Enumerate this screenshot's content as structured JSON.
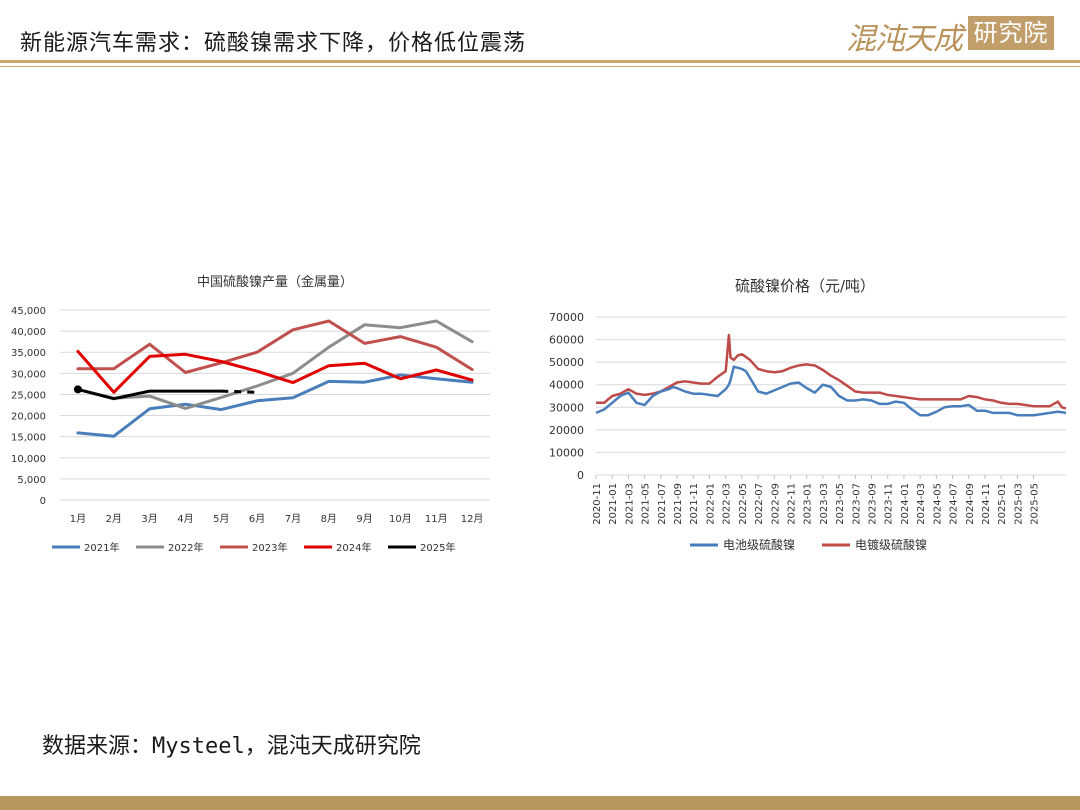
{
  "header": {
    "title": "新能源汽车需求：硫酸镍需求下降，价格低位震荡",
    "logo_left": "混沌天成",
    "logo_right": "研究院"
  },
  "footer": {
    "source": "数据来源：Mysteel，混沌天成研究院"
  },
  "colors": {
    "gold": "#c9a86c",
    "s2021": "#4a7ebb",
    "s2022": "#8c8c8c",
    "s2023": "#c0504d",
    "s2024": "#e00000",
    "s2025": "#000000",
    "battery": "#4a7ebb",
    "plating": "#be4b48"
  },
  "chart_data": [
    {
      "type": "line",
      "title": "中国硫酸镍产量（金属量）",
      "xlabel": "",
      "ylabel": "",
      "categories": [
        "1月",
        "2月",
        "3月",
        "4月",
        "5月",
        "6月",
        "7月",
        "8月",
        "9月",
        "10月",
        "11月",
        "12月"
      ],
      "ylim": [
        0,
        45000
      ],
      "yticks": [
        "0",
        "5,000",
        "10,000",
        "15,000",
        "20,000",
        "25,000",
        "30,000",
        "35,000",
        "40,000",
        "45,000"
      ],
      "grid": true,
      "legend": "bottom",
      "series": [
        {
          "name": "2021年",
          "color": "#4a7ebb",
          "values": [
            15900,
            15100,
            21600,
            22700,
            21400,
            23500,
            24200,
            28100,
            27900,
            29600,
            28700,
            27900
          ]
        },
        {
          "name": "2022年",
          "color": "#8c8c8c",
          "values": [
            26200,
            24100,
            24600,
            21700,
            24300,
            27000,
            30000,
            36200,
            41500,
            40800,
            42400,
            37500
          ]
        },
        {
          "name": "2023年",
          "color": "#c0504d",
          "values": [
            31100,
            31100,
            36900,
            30200,
            32500,
            35000,
            40300,
            42400,
            37100,
            38700,
            36200,
            30900
          ]
        },
        {
          "name": "2024年",
          "color": "#e00000",
          "values": [
            35200,
            25500,
            34000,
            34500,
            32800,
            30500,
            27800,
            31800,
            32400,
            28700,
            30800,
            28400
          ]
        },
        {
          "name": "2025年",
          "color": "#000000",
          "values": [
            26200,
            24000,
            25800,
            25800,
            25800,
            null,
            null,
            null,
            null,
            null,
            null,
            null
          ],
          "extension": [
            25800,
            25500
          ]
        }
      ]
    },
    {
      "type": "line",
      "title": "硫酸镍价格（元/吨）",
      "xlabel": "",
      "ylabel": "",
      "ylim": [
        0,
        70000
      ],
      "yticks": [
        "0",
        "10000",
        "20000",
        "30000",
        "40000",
        "50000",
        "60000",
        "70000"
      ],
      "xticks": [
        "2020-11",
        "2021-01",
        "2021-03",
        "2021-05",
        "2021-07",
        "2021-09",
        "2021-11",
        "2022-01",
        "2022-03",
        "2022-05",
        "2022-07",
        "2022-09",
        "2022-11",
        "2023-01",
        "2023-03",
        "2023-05",
        "2023-07",
        "2023-09",
        "2023-11",
        "2024-01",
        "2024-03",
        "2024-05",
        "2024-07",
        "2024-09",
        "2024-11",
        "2025-01",
        "2025-03",
        "2025-05"
      ],
      "grid": true,
      "legend": "bottom",
      "series": [
        {
          "name": "电池级硫酸镍",
          "color": "#4a7ebb",
          "x": [
            0,
            1,
            2,
            3,
            4,
            5,
            6,
            7,
            8,
            9,
            9.5,
            10,
            11,
            12,
            13,
            14,
            15,
            16,
            16.4,
            16.6,
            17,
            18,
            18.5,
            19,
            20,
            21,
            22,
            23,
            24,
            25,
            26,
            27,
            28,
            29,
            30,
            31,
            32,
            33,
            34,
            35,
            36,
            37,
            38,
            39,
            40,
            41,
            42,
            43,
            44,
            45,
            46,
            47,
            48,
            49,
            50,
            51,
            52,
            53,
            54,
            55,
            56,
            57,
            57.5,
            58
          ],
          "y": [
            27500,
            29000,
            32000,
            35000,
            36500,
            32000,
            31000,
            35000,
            37000,
            38000,
            39000,
            38500,
            37000,
            36000,
            36000,
            35500,
            35000,
            38000,
            40000,
            42000,
            48000,
            47000,
            46000,
            43000,
            37000,
            36000,
            37500,
            39000,
            40500,
            41000,
            38500,
            36500,
            40000,
            39000,
            35000,
            33000,
            33000,
            33500,
            33000,
            31500,
            31500,
            32500,
            32000,
            29000,
            26500,
            26500,
            28000,
            30000,
            30500,
            30500,
            31000,
            28500,
            28500,
            27500,
            27500,
            27500,
            26500,
            26500,
            26500,
            27000,
            27500,
            28000,
            27800,
            27500
          ]
        },
        {
          "name": "电镀级硫酸镍",
          "color": "#be4b48",
          "x": [
            0,
            1,
            2,
            3,
            4,
            5,
            6,
            7,
            8,
            9,
            10,
            11,
            12,
            13,
            14,
            15,
            16,
            16.4,
            16.6,
            17,
            17.5,
            18,
            19,
            20,
            21,
            22,
            23,
            24,
            25,
            26,
            27,
            28,
            29,
            30,
            31,
            32,
            33,
            34,
            35,
            36,
            37,
            38,
            39,
            40,
            41,
            42,
            43,
            44,
            45,
            46,
            47,
            48,
            49,
            50,
            51,
            52,
            53,
            54,
            55,
            56,
            57,
            57.5,
            58
          ],
          "y": [
            32000,
            32000,
            35000,
            36000,
            38000,
            36000,
            35500,
            36000,
            37000,
            39000,
            41000,
            41500,
            41000,
            40500,
            40500,
            43500,
            46000,
            62000,
            52000,
            51000,
            53000,
            53500,
            51000,
            47000,
            46000,
            45500,
            46000,
            47500,
            48500,
            49000,
            48500,
            46500,
            44000,
            42000,
            39500,
            37000,
            36500,
            36500,
            36500,
            35500,
            35000,
            34500,
            34000,
            33500,
            33500,
            33500,
            33500,
            33500,
            33500,
            35000,
            34500,
            33500,
            33000,
            32000,
            31500,
            31500,
            31000,
            30500,
            30500,
            30500,
            32500,
            30000,
            29500
          ]
        }
      ]
    }
  ]
}
